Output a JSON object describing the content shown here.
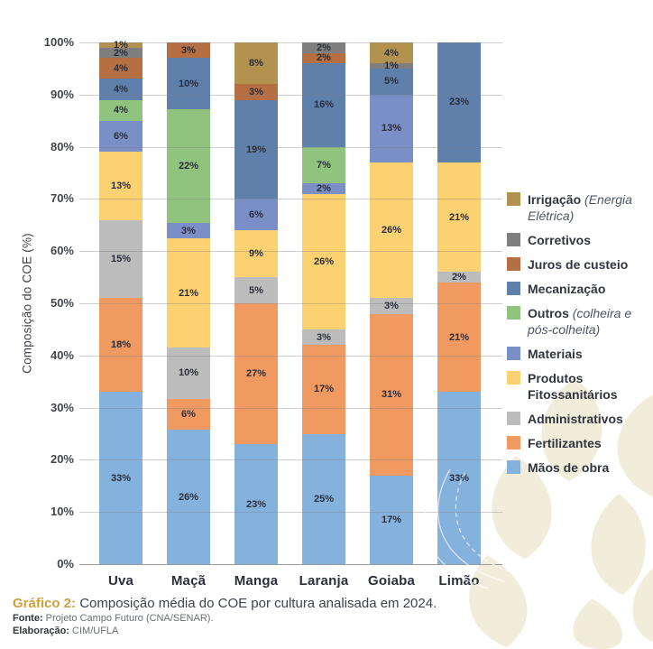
{
  "colors": {
    "accent_gold": "#cfa03c",
    "watermark_cream": "#f1edda",
    "gridline_gray": "#9a9a9a",
    "label_dark": "#2b2f3a"
  },
  "chart_data": {
    "type": "bar",
    "stacked": true,
    "title": "",
    "xlabel": "",
    "ylabel": "Composição do COE (%)",
    "ylim": [
      0,
      100
    ],
    "yticks": [
      0,
      10,
      20,
      30,
      40,
      50,
      60,
      70,
      80,
      90,
      100
    ],
    "ytick_suffix": "%",
    "grid": true,
    "legend_position": "right",
    "value_label_suffix": "%",
    "categories": [
      "Uva",
      "Maçã",
      "Manga",
      "Laranja",
      "Goiaba",
      "Limão"
    ],
    "series": [
      {
        "name": "Mãos de obra",
        "color": "#85b1dd",
        "values": [
          33,
          26,
          23,
          25,
          17,
          33
        ]
      },
      {
        "name": "Fertilizantes",
        "color": "#f09a62",
        "values": [
          18,
          6,
          27,
          17,
          31,
          21
        ]
      },
      {
        "name": "Administrativos",
        "color": "#bcbcbc",
        "values": [
          15,
          10,
          5,
          3,
          3,
          2
        ]
      },
      {
        "name": "Produtos Fitossanitários",
        "color": "#fcd171",
        "values": [
          13,
          21,
          9,
          26,
          26,
          21
        ]
      },
      {
        "name": "Materiais",
        "color": "#7b8fc7",
        "values": [
          6,
          3,
          6,
          2,
          13,
          0
        ]
      },
      {
        "name": "Outros (colheira e pós-colheita)",
        "color": "#90c47e",
        "values": [
          4,
          22,
          0,
          7,
          0,
          0
        ]
      },
      {
        "name": "Mecanização",
        "color": "#5e80ab",
        "values": [
          4,
          10,
          19,
          16,
          5,
          23
        ]
      },
      {
        "name": "Juros de custeio",
        "color": "#b66f42",
        "values": [
          4,
          3,
          3,
          2,
          0,
          0
        ]
      },
      {
        "name": "Corretivos",
        "color": "#7f7f7f",
        "values": [
          2,
          0,
          0,
          2,
          1,
          0
        ]
      },
      {
        "name": "Irrigação (Energia Elétrica)",
        "color": "#b3914f",
        "values": [
          1,
          0,
          8,
          0,
          4,
          0
        ]
      }
    ]
  },
  "legend": {
    "items": [
      {
        "label": "Irrigação",
        "suffix": "(Energia Elétrica)",
        "color": "#b3914f"
      },
      {
        "label": "Corretivos",
        "suffix": "",
        "color": "#7f7f7f"
      },
      {
        "label": "Juros de custeio",
        "suffix": "",
        "color": "#b66f42"
      },
      {
        "label": "Mecanização",
        "suffix": "",
        "color": "#5e80ab"
      },
      {
        "label": "Outros",
        "suffix": "(colheira e pós-colheita)",
        "color": "#90c47e"
      },
      {
        "label": "Materiais",
        "suffix": "",
        "color": "#7b8fc7"
      },
      {
        "label": "Produtos Fitossanitários",
        "suffix": "",
        "color": "#fcd171"
      },
      {
        "label": "Administrativos",
        "suffix": "",
        "color": "#bcbcbc"
      },
      {
        "label": "Fertilizantes",
        "suffix": "",
        "color": "#f09a62"
      },
      {
        "label": "Mãos de obra",
        "suffix": "",
        "color": "#85b1dd"
      }
    ]
  },
  "caption": {
    "label": "Gráfico 2:",
    "text": " Composição média do COE por cultura analisada em 2024.",
    "source_label": "Fonte:",
    "source": " Projeto Campo Futuro (CNA/SENAR).",
    "elaboration_label": "Elaboração:",
    "elaboration": " CIM/UFLA"
  }
}
